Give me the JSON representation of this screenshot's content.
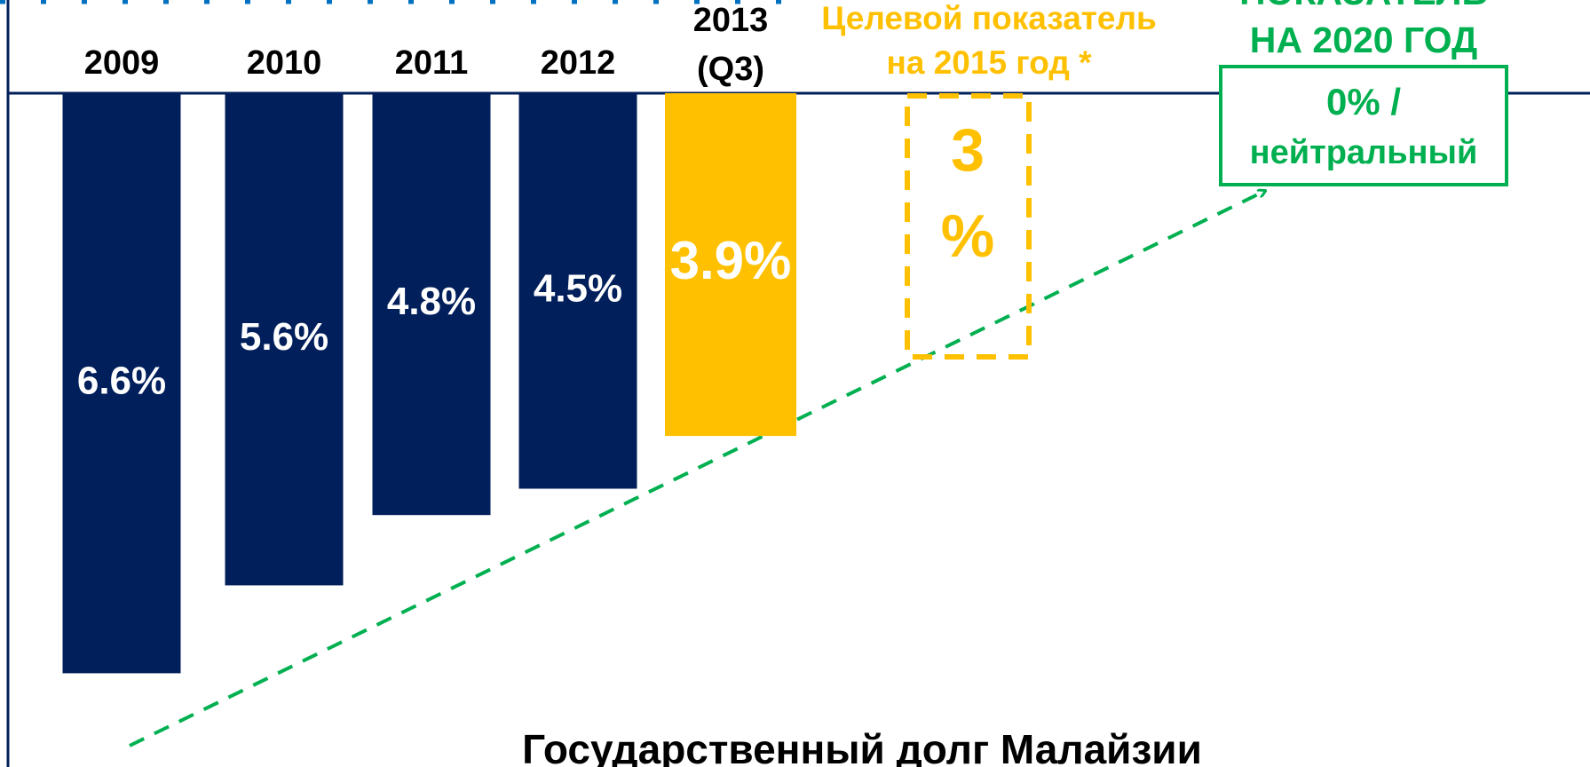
{
  "chart_data": {
    "type": "bar",
    "title": "Государственный долг Малайзии",
    "categories": [
      "2009",
      "2010",
      "2011",
      "2012",
      "2013 (Q3)"
    ],
    "values": [
      6.6,
      5.6,
      4.8,
      4.5,
      3.9
    ],
    "value_labels": [
      "6.6%",
      "5.6%",
      "4.8%",
      "4.5%",
      "3.9%"
    ],
    "colors": [
      "#001f5b",
      "#001f5b",
      "#001f5b",
      "#001f5b",
      "#ffc000"
    ],
    "ylim": [
      0,
      7
    ],
    "targets": [
      {
        "label": [
          "Целевой показатель",
          "на 2015 год *"
        ],
        "value": 3,
        "value_label": [
          "3",
          "%"
        ],
        "color": "#ffc000"
      },
      {
        "label": [
          "ПОКАЗАТЕЛЬ",
          "НА 2020 ГОД"
        ],
        "value": 0,
        "value_label": [
          "0% /",
          "нейтральный"
        ],
        "color": "#00b050"
      }
    ]
  }
}
